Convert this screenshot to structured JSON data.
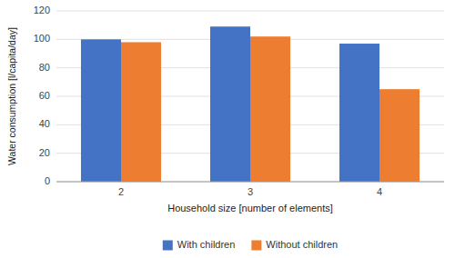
{
  "chart_data": {
    "type": "bar",
    "xlabel": "Household size [number of elements]",
    "ylabel": "Water consumption [l/capita/day]",
    "categories": [
      "2",
      "3",
      "4"
    ],
    "series": [
      {
        "name": "With children",
        "color": "#4472C4",
        "values": [
          100,
          109,
          97
        ]
      },
      {
        "name": "Without children",
        "color": "#ED7D31",
        "values": [
          98,
          102,
          65
        ]
      }
    ],
    "ylim": [
      0,
      120
    ],
    "yticks": [
      0,
      20,
      40,
      60,
      80,
      100,
      120
    ],
    "grid": true,
    "legend": "bottom"
  }
}
